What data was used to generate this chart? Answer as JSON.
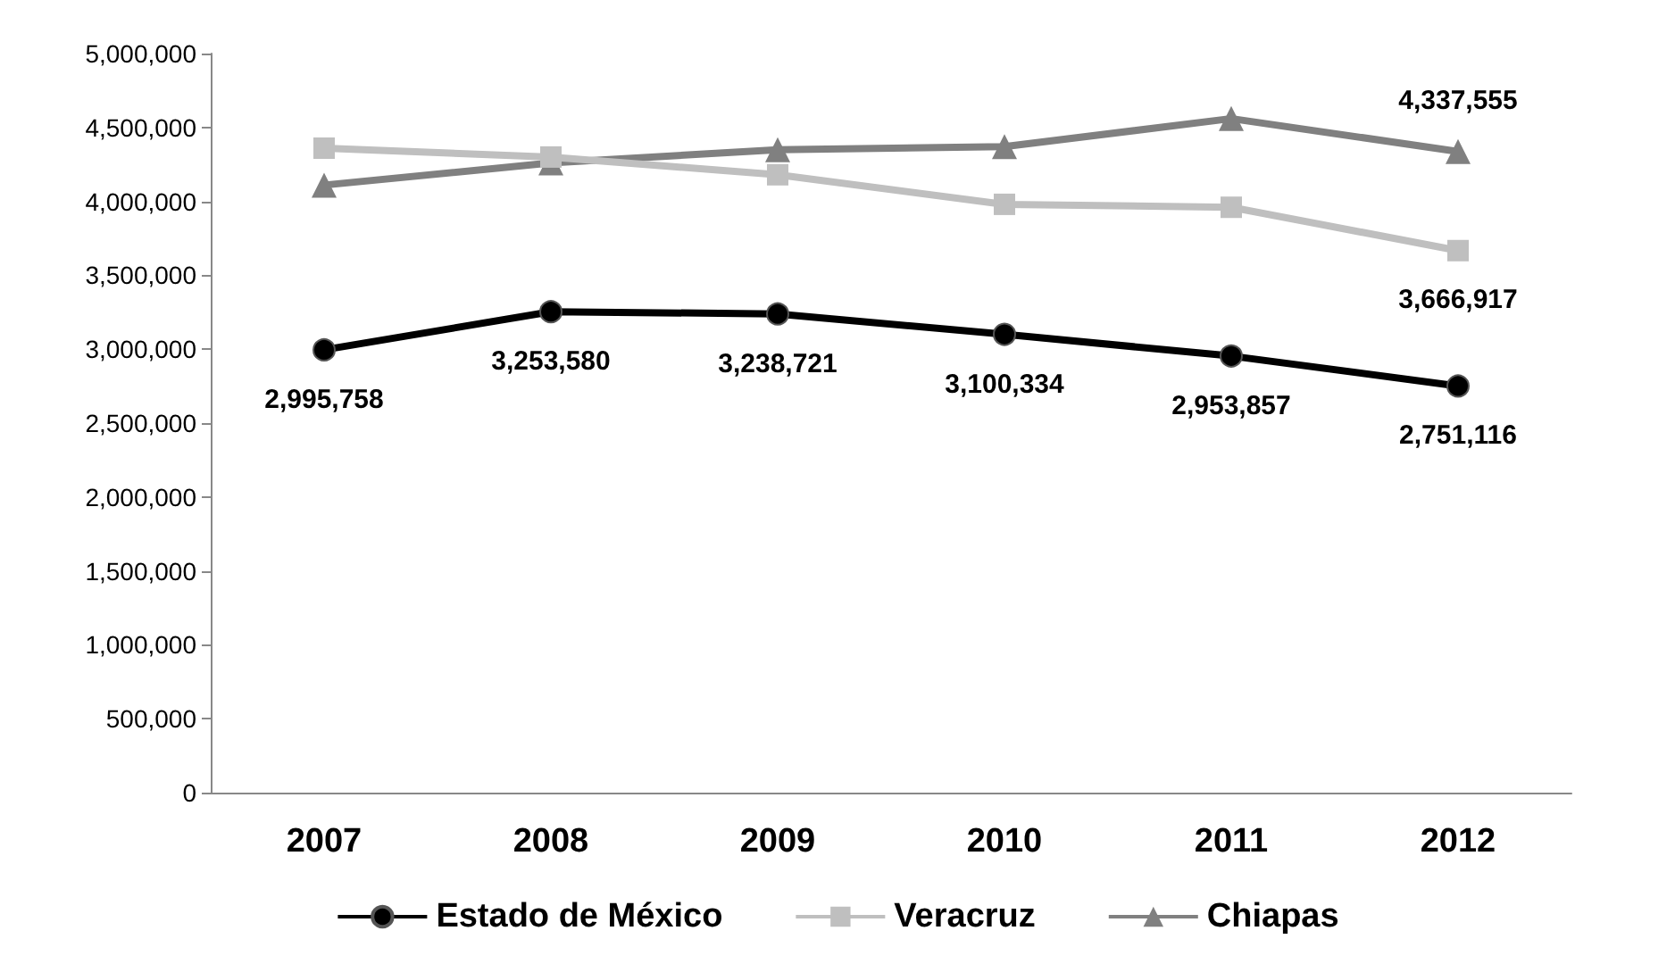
{
  "chart_data": {
    "type": "line",
    "categories": [
      "2007",
      "2008",
      "2009",
      "2010",
      "2011",
      "2012"
    ],
    "series": [
      {
        "name": "Estado de México",
        "color": "#000000",
        "marker": "circle",
        "values": [
          2995758,
          3253580,
          3238721,
          3100334,
          2953857,
          2751116
        ],
        "value_labels": [
          "2,995,758",
          "3,253,580",
          "3,238,721",
          "3,100,334",
          "2,953,857",
          "2,751,116"
        ]
      },
      {
        "name": "Veracruz",
        "color": "#bfbfbf",
        "marker": "square",
        "values": [
          4360000,
          4300000,
          4180000,
          3980000,
          3960000,
          3666917
        ],
        "value_labels": [
          null,
          null,
          null,
          null,
          null,
          "3,666,917"
        ]
      },
      {
        "name": "Chiapas",
        "color": "#808080",
        "marker": "triangle",
        "values": [
          4110000,
          4260000,
          4350000,
          4370000,
          4560000,
          4337555
        ],
        "value_labels": [
          null,
          null,
          null,
          null,
          null,
          "4,337,555"
        ]
      }
    ],
    "ylim": [
      0,
      5000000
    ],
    "yticks": [
      0,
      {
        "value": 500000,
        "label": "500,000"
      },
      {
        "value": 1000000,
        "label": "1,000,000"
      },
      {
        "value": 1500000,
        "label": "1,500,000"
      },
      {
        "value": 2000000,
        "label": "2,000,000"
      },
      {
        "value": 2500000,
        "label": "2,500,000"
      },
      {
        "value": 3000000,
        "label": "3,000,000"
      },
      {
        "value": 3500000,
        "label": "3,500,000"
      },
      {
        "value": 4000000,
        "label": "4,000,000"
      },
      {
        "value": 4500000,
        "label": "4,500,000"
      },
      {
        "value": 5000000,
        "label": "5,000,000"
      }
    ],
    "grid": false,
    "legend": "bottom"
  }
}
